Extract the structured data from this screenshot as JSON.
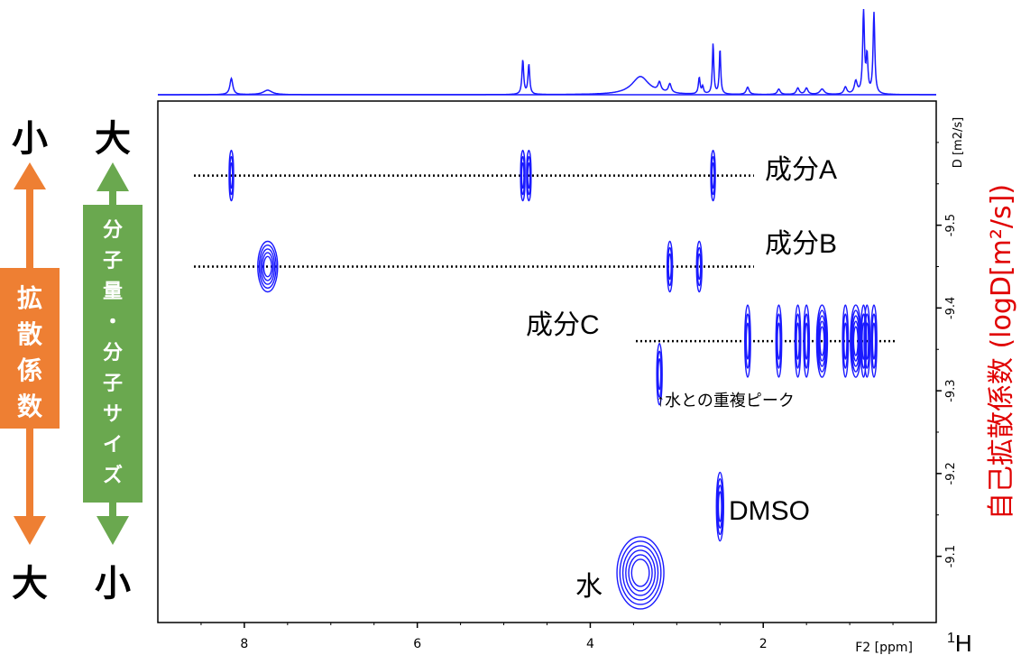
{
  "chart_data": {
    "type": "scatter",
    "subtype": "2D DOSY NMR spectrum (contour plot with 1D projection)",
    "xlabel": "F2 [ppm]",
    "x_nucleus": "¹H",
    "x_unit_label": "1H",
    "ylabel_right": "D [m2/s]",
    "axis_title_right": "自己拡散係数 (logD[m²/s])",
    "xlim": [
      9.0,
      0.0
    ],
    "x_reversed": true,
    "ylim": [
      -9.65,
      -9.02
    ],
    "y_reversed": true,
    "x_ticks": [
      8,
      6,
      4,
      2
    ],
    "y_ticks": [
      -9.5,
      -9.4,
      -9.3,
      -9.2,
      -9.1
    ],
    "y_tick_labels": [
      "-9.5",
      "-9.4",
      "-9.3",
      "-9.2",
      "-9.1"
    ],
    "line_color": "#1a1aff",
    "series": [
      {
        "name": "成分A",
        "log_d": -9.56,
        "peaks_ppm": [
          8.15,
          4.78,
          4.71,
          2.58
        ]
      },
      {
        "name": "成分B",
        "log_d": -9.45,
        "peaks_ppm": [
          7.73,
          3.08,
          2.74
        ]
      },
      {
        "name": "成分C",
        "log_d": -9.36,
        "peaks_ppm": [
          2.18,
          1.82,
          1.6,
          1.5,
          1.32,
          1.05,
          0.93,
          0.84,
          0.8,
          0.72
        ]
      },
      {
        "name": "DMSO",
        "log_d": -9.16,
        "peaks_ppm": [
          2.5
        ]
      },
      {
        "name": "水",
        "log_d": -9.08,
        "peaks_ppm": [
          3.42
        ]
      }
    ],
    "extra_peaks": [
      {
        "ppm": 3.2,
        "log_d": -9.32,
        "note": "↑水との重複ピーク"
      }
    ],
    "annotations": {
      "component_a": "成分A",
      "component_b": "成分B",
      "component_c": "成分C",
      "dmso": "DMSO",
      "water": "水",
      "overlap_note": "↑水との重複ピーク"
    }
  },
  "left_scale": {
    "diffusion": {
      "top": "小",
      "bottom": "大",
      "label": [
        "拡",
        "散",
        "係",
        "数"
      ],
      "color": "#ee7f33"
    },
    "molecular": {
      "top": "大",
      "bottom": "小",
      "label": [
        "分",
        "子",
        "量",
        "・",
        "分",
        "子",
        "サ",
        "イ",
        "ズ"
      ],
      "color": "#6aa84f"
    }
  }
}
